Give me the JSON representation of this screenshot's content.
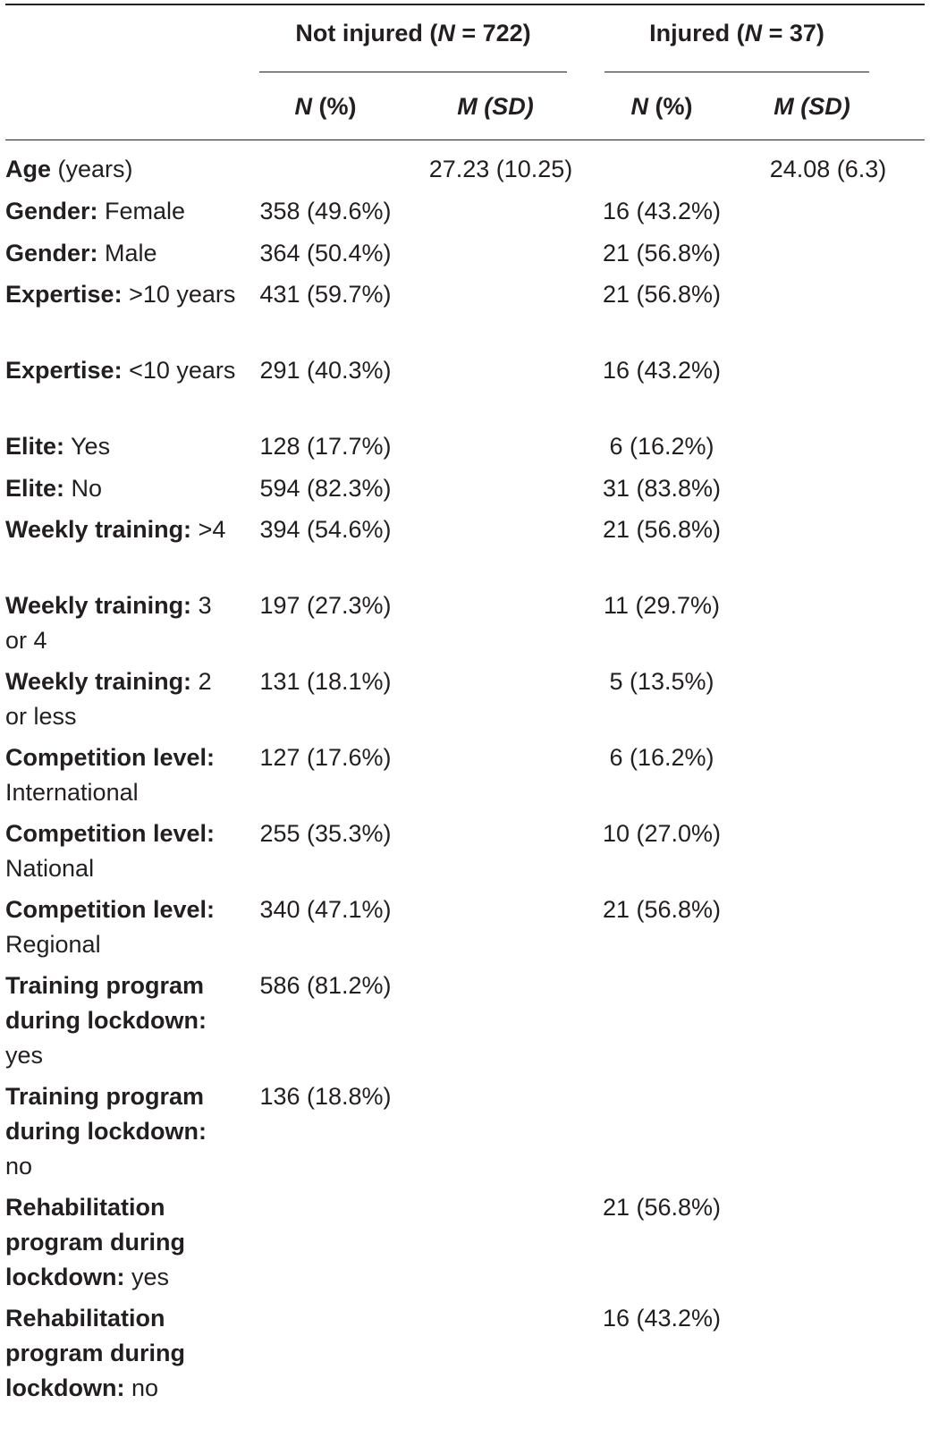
{
  "header": {
    "group_not_injured": {
      "label": "Not injured (",
      "n_letter": "N",
      "n_rest": " = 722)"
    },
    "group_injured": {
      "label": "Injured (",
      "n_letter": "N",
      "n_rest": " = 37)"
    },
    "sub_headers": [
      {
        "stat": "N",
        "paren": " (%)"
      },
      {
        "stat": "M",
        "paren": " (SD)"
      },
      {
        "stat": "N",
        "paren": " (%)"
      },
      {
        "stat": "M",
        "paren": " (SD)"
      }
    ]
  },
  "rows": [
    {
      "bold": "Age",
      "rest": " (years)",
      "ni_n": "",
      "ni_m": "27.23 (10.25)",
      "i_n": "",
      "i_m": "24.08 (6.3)"
    },
    {
      "bold": "Gender:",
      "rest": " Female",
      "ni_n": "358 (49.6%)",
      "ni_m": "",
      "i_n": "16 (43.2%)",
      "i_m": ""
    },
    {
      "bold": "Gender:",
      "rest": " Male",
      "ni_n": "364 (50.4%)",
      "ni_m": "",
      "i_n": "21 (56.8%)",
      "i_m": ""
    },
    {
      "bold": "Expertise:",
      "rest": " >10 years",
      "ni_n": "431 (59.7%)",
      "ni_m": "",
      "i_n": "21 (56.8%)",
      "i_m": ""
    },
    {
      "bold": "Expertise:",
      "rest": " <10 years",
      "ni_n": "291 (40.3%)",
      "ni_m": "",
      "i_n": "16 (43.2%)",
      "i_m": ""
    },
    {
      "bold": "Elite:",
      "rest": " Yes",
      "ni_n": "128 (17.7%)",
      "ni_m": "",
      "i_n": "6 (16.2%)",
      "i_m": ""
    },
    {
      "bold": "Elite:",
      "rest": " No",
      "ni_n": "594 (82.3%)",
      "ni_m": "",
      "i_n": "31 (83.8%)",
      "i_m": ""
    },
    {
      "bold": "Weekly training:",
      "rest": " >4",
      "ni_n": "394 (54.6%)",
      "ni_m": "",
      "i_n": "21 (56.8%)",
      "i_m": ""
    },
    {
      "bold": "Weekly training:",
      "rest": " 3 or 4",
      "ni_n": "197 (27.3%)",
      "ni_m": "",
      "i_n": "11 (29.7%)",
      "i_m": ""
    },
    {
      "bold": "Weekly training:",
      "rest": " 2 or less",
      "ni_n": "131 (18.1%)",
      "ni_m": "",
      "i_n": "5 (13.5%)",
      "i_m": ""
    },
    {
      "bold": "Competition level:",
      "rest": " International",
      "ni_n": "127 (17.6%)",
      "ni_m": "",
      "i_n": "6 (16.2%)",
      "i_m": ""
    },
    {
      "bold": "Competition level:",
      "rest": " National",
      "ni_n": "255 (35.3%)",
      "ni_m": "",
      "i_n": "10 (27.0%)",
      "i_m": ""
    },
    {
      "bold": "Competition level:",
      "rest": " Regional",
      "ni_n": "340 (47.1%)",
      "ni_m": "",
      "i_n": "21 (56.8%)",
      "i_m": ""
    },
    {
      "bold": "Training program during lockdown:",
      "rest": " yes",
      "ni_n": "586 (81.2%)",
      "ni_m": "",
      "i_n": "",
      "i_m": ""
    },
    {
      "bold": "Training program during lockdown:",
      "rest": " no",
      "ni_n": "136 (18.8%)",
      "ni_m": "",
      "i_n": "",
      "i_m": ""
    },
    {
      "bold": "Rehabilitation program during lockdown:",
      "rest": " yes",
      "ni_n": "",
      "ni_m": "",
      "i_n": "21 (56.8%)",
      "i_m": ""
    },
    {
      "bold": "Rehabilitation program during lockdown:",
      "rest": " no",
      "ni_n": "",
      "ni_m": "",
      "i_n": "16 (43.2%)",
      "i_m": ""
    }
  ]
}
